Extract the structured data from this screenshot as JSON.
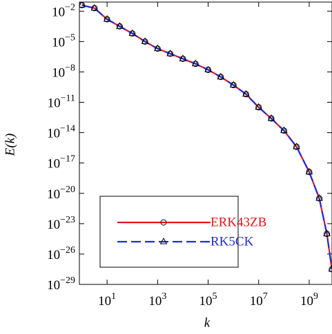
{
  "chart_data": {
    "type": "line",
    "xlabel": "k",
    "ylabel": "E(k)",
    "log_x": true,
    "log_y": true,
    "xlim": [
      0.8,
      8000000000.0
    ],
    "ylim": [
      1e-29,
      0.08
    ],
    "xticks": [
      {
        "value": 10,
        "label": "101"
      },
      {
        "value": 1000,
        "label": "103"
      },
      {
        "value": 100000,
        "label": "105"
      },
      {
        "value": 10000000,
        "label": "107"
      },
      {
        "value": 1000000000,
        "label": "109"
      }
    ],
    "yticks": [
      {
        "value": 0.01,
        "label": "10−2"
      },
      {
        "value": 1e-05,
        "label": "10−5"
      },
      {
        "value": 1e-08,
        "label": "10−8"
      },
      {
        "value": 1e-11,
        "label": "10−11"
      },
      {
        "value": 1e-14,
        "label": "10−14"
      },
      {
        "value": 1e-17,
        "label": "10−17"
      },
      {
        "value": 1e-20,
        "label": "10−20"
      },
      {
        "value": 1e-23,
        "label": "10−23"
      },
      {
        "value": 1e-26,
        "label": "10−26"
      },
      {
        "value": 1e-29,
        "label": "10−29"
      }
    ],
    "legend": "lower left",
    "x": [
      1,
      3.16,
      10,
      31.6,
      100,
      316,
      1000,
      3160,
      10000,
      31600,
      100000,
      316000,
      1000000,
      3160000,
      10000000,
      31600000,
      100000000,
      316000000,
      1000000000,
      2510000000,
      5010000000,
      7940000000
    ],
    "series": [
      {
        "name": "ERK43ZB",
        "color": "#e8141b",
        "dash": "solid",
        "marker": "circle",
        "values": [
          0.04,
          0.02,
          0.0016,
          0.00032,
          6.3e-05,
          1e-05,
          2e-06,
          6.3e-07,
          2e-07,
          6.3e-08,
          1.6e-08,
          3.2e-09,
          5e-10,
          6.3e-11,
          3.2e-12,
          2.5e-13,
          1.6e-14,
          4e-16,
          1.3e-18,
          3.2e-21,
          1e-24,
          3.2e-28
        ]
      },
      {
        "name": "RK5CK",
        "color": "#1f2bd6",
        "dash": "dashed",
        "marker": "triangle",
        "values": [
          0.04,
          0.02,
          0.0016,
          0.00032,
          6.3e-05,
          1e-05,
          2e-06,
          6.3e-07,
          2e-07,
          6.3e-08,
          1.6e-08,
          3.2e-09,
          5e-10,
          6.3e-11,
          3.2e-12,
          2.5e-13,
          1.6e-14,
          4e-16,
          1.3e-18,
          3.2e-21,
          1e-24,
          3.2e-28
        ]
      }
    ]
  }
}
